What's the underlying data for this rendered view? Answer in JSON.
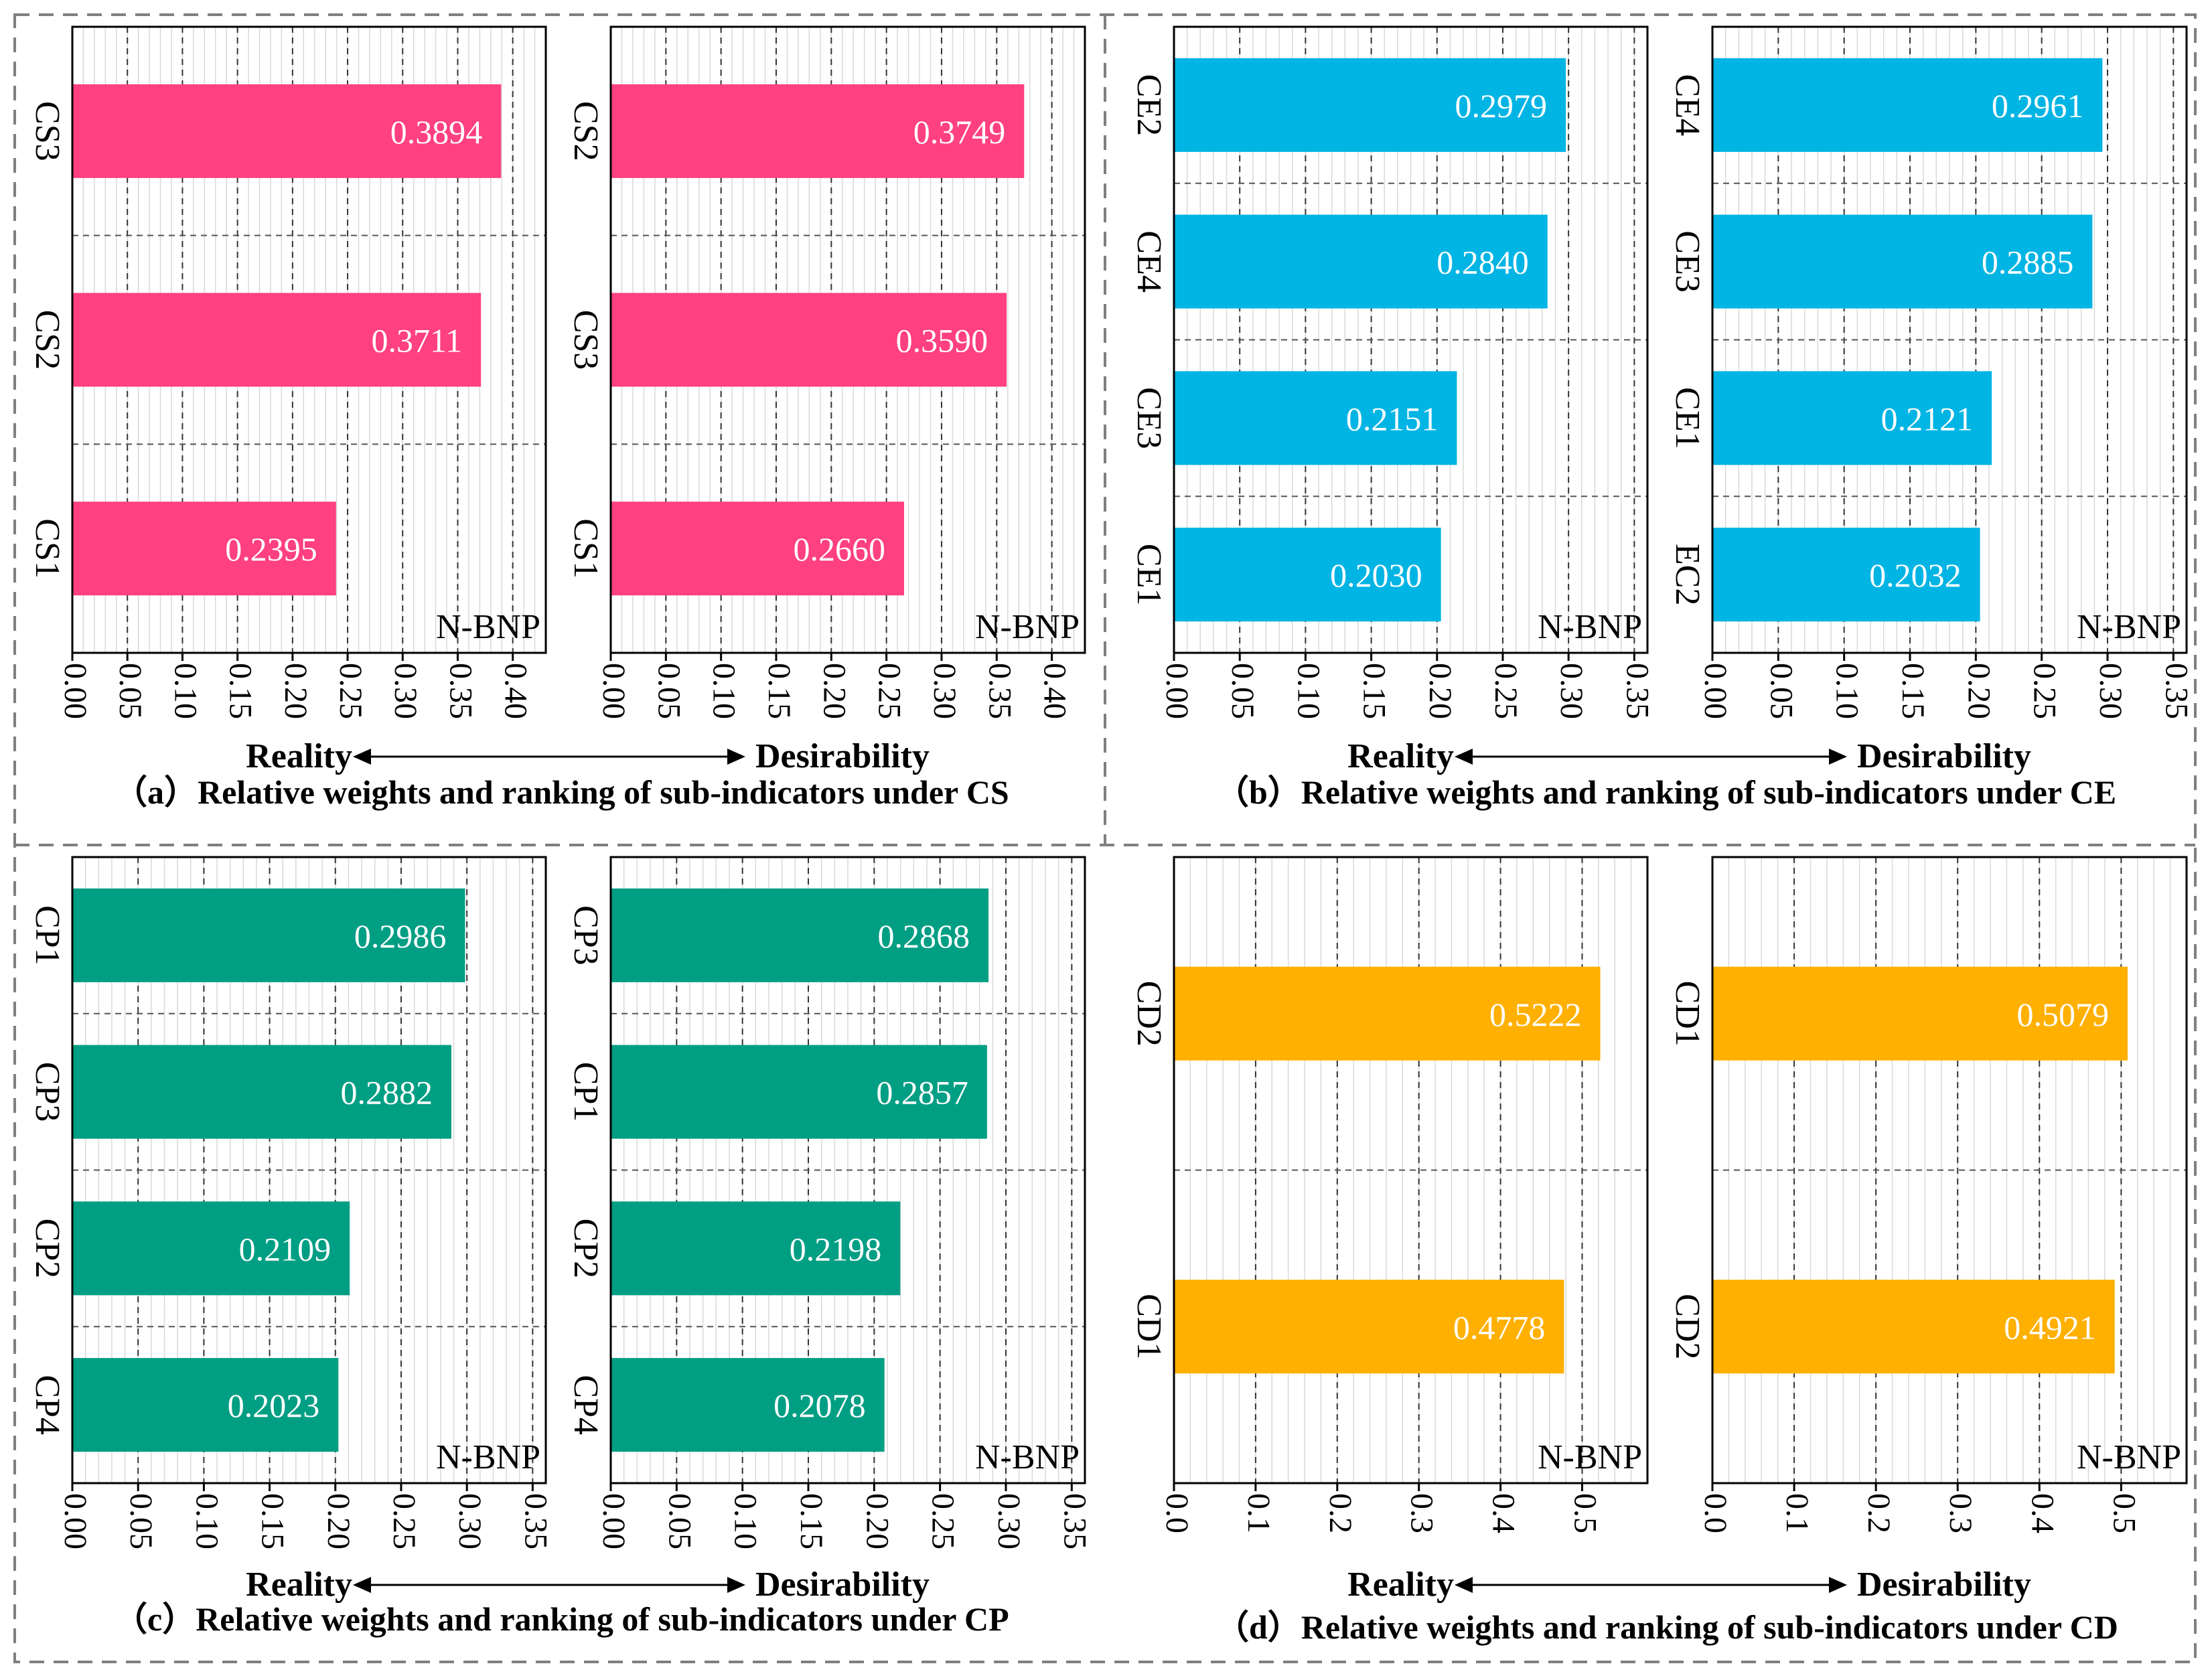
{
  "colors": {
    "CS": "#FF4081",
    "CE": "#00B4E4",
    "CP": "#009E83",
    "CD": "#FFB000",
    "bar_label": "#ffffff",
    "axis": "#000000",
    "frame": "#7f7f7f"
  },
  "arrow": {
    "left": "Reality",
    "right": "Desirability"
  },
  "chart_data": [
    {
      "type": "bar",
      "orientation": "horizontal",
      "panel": "a",
      "caption": "（a）Relative weights and ranking of sub-indicators under CS",
      "color": "CS",
      "charts": [
        {
          "side": "Reality",
          "categories": [
            "CS3",
            "CS2",
            "CS1"
          ],
          "values": [
            0.3894,
            0.3711,
            0.2395
          ],
          "labels": [
            "0.3894",
            "0.3711",
            "0.2395"
          ],
          "xlim": [
            0,
            0.43
          ],
          "ticks": [
            "0.00",
            "0.05",
            "0.10",
            "0.15",
            "0.20",
            "0.25",
            "0.30",
            "0.35",
            "0.40"
          ],
          "corner_label": "N-BNP"
        },
        {
          "side": "Desirability",
          "categories": [
            "CS2",
            "CS3",
            "CS1"
          ],
          "values": [
            0.3749,
            0.359,
            0.266
          ],
          "labels": [
            "0.3749",
            "0.3590",
            "0.2660"
          ],
          "xlim": [
            0,
            0.43
          ],
          "ticks": [
            "0.00",
            "0.05",
            "0.10",
            "0.15",
            "0.20",
            "0.25",
            "0.30",
            "0.35",
            "0.40"
          ],
          "corner_label": "N-BNP"
        }
      ]
    },
    {
      "type": "bar",
      "orientation": "horizontal",
      "panel": "b",
      "caption": "（b）Relative weights and ranking of sub-indicators under CE",
      "color": "CE",
      "charts": [
        {
          "side": "Reality",
          "categories": [
            "CE2",
            "CE4",
            "CE3",
            "CE1"
          ],
          "values": [
            0.2979,
            0.284,
            0.2151,
            0.203
          ],
          "labels": [
            "0.2979",
            "0.2840",
            "0.2151",
            "0.2030"
          ],
          "xlim": [
            0,
            0.36
          ],
          "ticks": [
            "0.00",
            "0.05",
            "0.10",
            "0.15",
            "0.20",
            "0.25",
            "0.30",
            "0.35"
          ],
          "corner_label": "N-BNP"
        },
        {
          "side": "Desirability",
          "categories": [
            "CE4",
            "CE3",
            "CE1",
            "EC2"
          ],
          "values": [
            0.2961,
            0.2885,
            0.2121,
            0.2032
          ],
          "labels": [
            "0.2961",
            "0.2885",
            "0.2121",
            "0.2032"
          ],
          "xlim": [
            0,
            0.36
          ],
          "ticks": [
            "0.00",
            "0.05",
            "0.10",
            "0.15",
            "0.20",
            "0.25",
            "0.30",
            "0.35"
          ],
          "corner_label": "N-BNP"
        }
      ]
    },
    {
      "type": "bar",
      "orientation": "horizontal",
      "panel": "c",
      "caption": "（c）Relative weights and ranking of sub-indicators under CP",
      "color": "CP",
      "charts": [
        {
          "side": "Reality",
          "categories": [
            "CP1",
            "CP3",
            "CP2",
            "CP4"
          ],
          "values": [
            0.2986,
            0.2882,
            0.2109,
            0.2023
          ],
          "labels": [
            "0.2986",
            "0.2882",
            "0.2109",
            "0.2023"
          ],
          "xlim": [
            0,
            0.36
          ],
          "ticks": [
            "0.00",
            "0.05",
            "0.10",
            "0.15",
            "0.20",
            "0.25",
            "0.30",
            "0.35"
          ],
          "corner_label": "N-BNP"
        },
        {
          "side": "Desirability",
          "categories": [
            "CP3",
            "CP1",
            "CP2",
            "CP4"
          ],
          "values": [
            0.2868,
            0.2857,
            0.2198,
            0.2078
          ],
          "labels": [
            "0.2868",
            "0.2857",
            "0.2198",
            "0.2078"
          ],
          "xlim": [
            0,
            0.36
          ],
          "ticks": [
            "0.00",
            "0.05",
            "0.10",
            "0.15",
            "0.20",
            "0.25",
            "0.30",
            "0.35"
          ],
          "corner_label": "N-BNP"
        }
      ]
    },
    {
      "type": "bar",
      "orientation": "horizontal",
      "panel": "d",
      "caption": "（d）Relative weights and ranking of sub-indicators under CD",
      "color": "CD",
      "charts": [
        {
          "side": "Reality",
          "categories": [
            "CD2",
            "CD1"
          ],
          "values": [
            0.5222,
            0.4778
          ],
          "labels": [
            "0.5222",
            "0.4778"
          ],
          "xlim": [
            0,
            0.58
          ],
          "ticks": [
            "0.0",
            "0.1",
            "0.2",
            "0.3",
            "0.4",
            "0.5"
          ],
          "corner_label": "N-BNP"
        },
        {
          "side": "Desirability",
          "categories": [
            "CD1",
            "CD2"
          ],
          "values": [
            0.5079,
            0.4921
          ],
          "labels": [
            "0.5079",
            "0.4921"
          ],
          "xlim": [
            0,
            0.58
          ],
          "ticks": [
            "0.0",
            "0.1",
            "0.2",
            "0.3",
            "0.4",
            "0.5"
          ],
          "corner_label": "N-BNP"
        }
      ]
    }
  ]
}
